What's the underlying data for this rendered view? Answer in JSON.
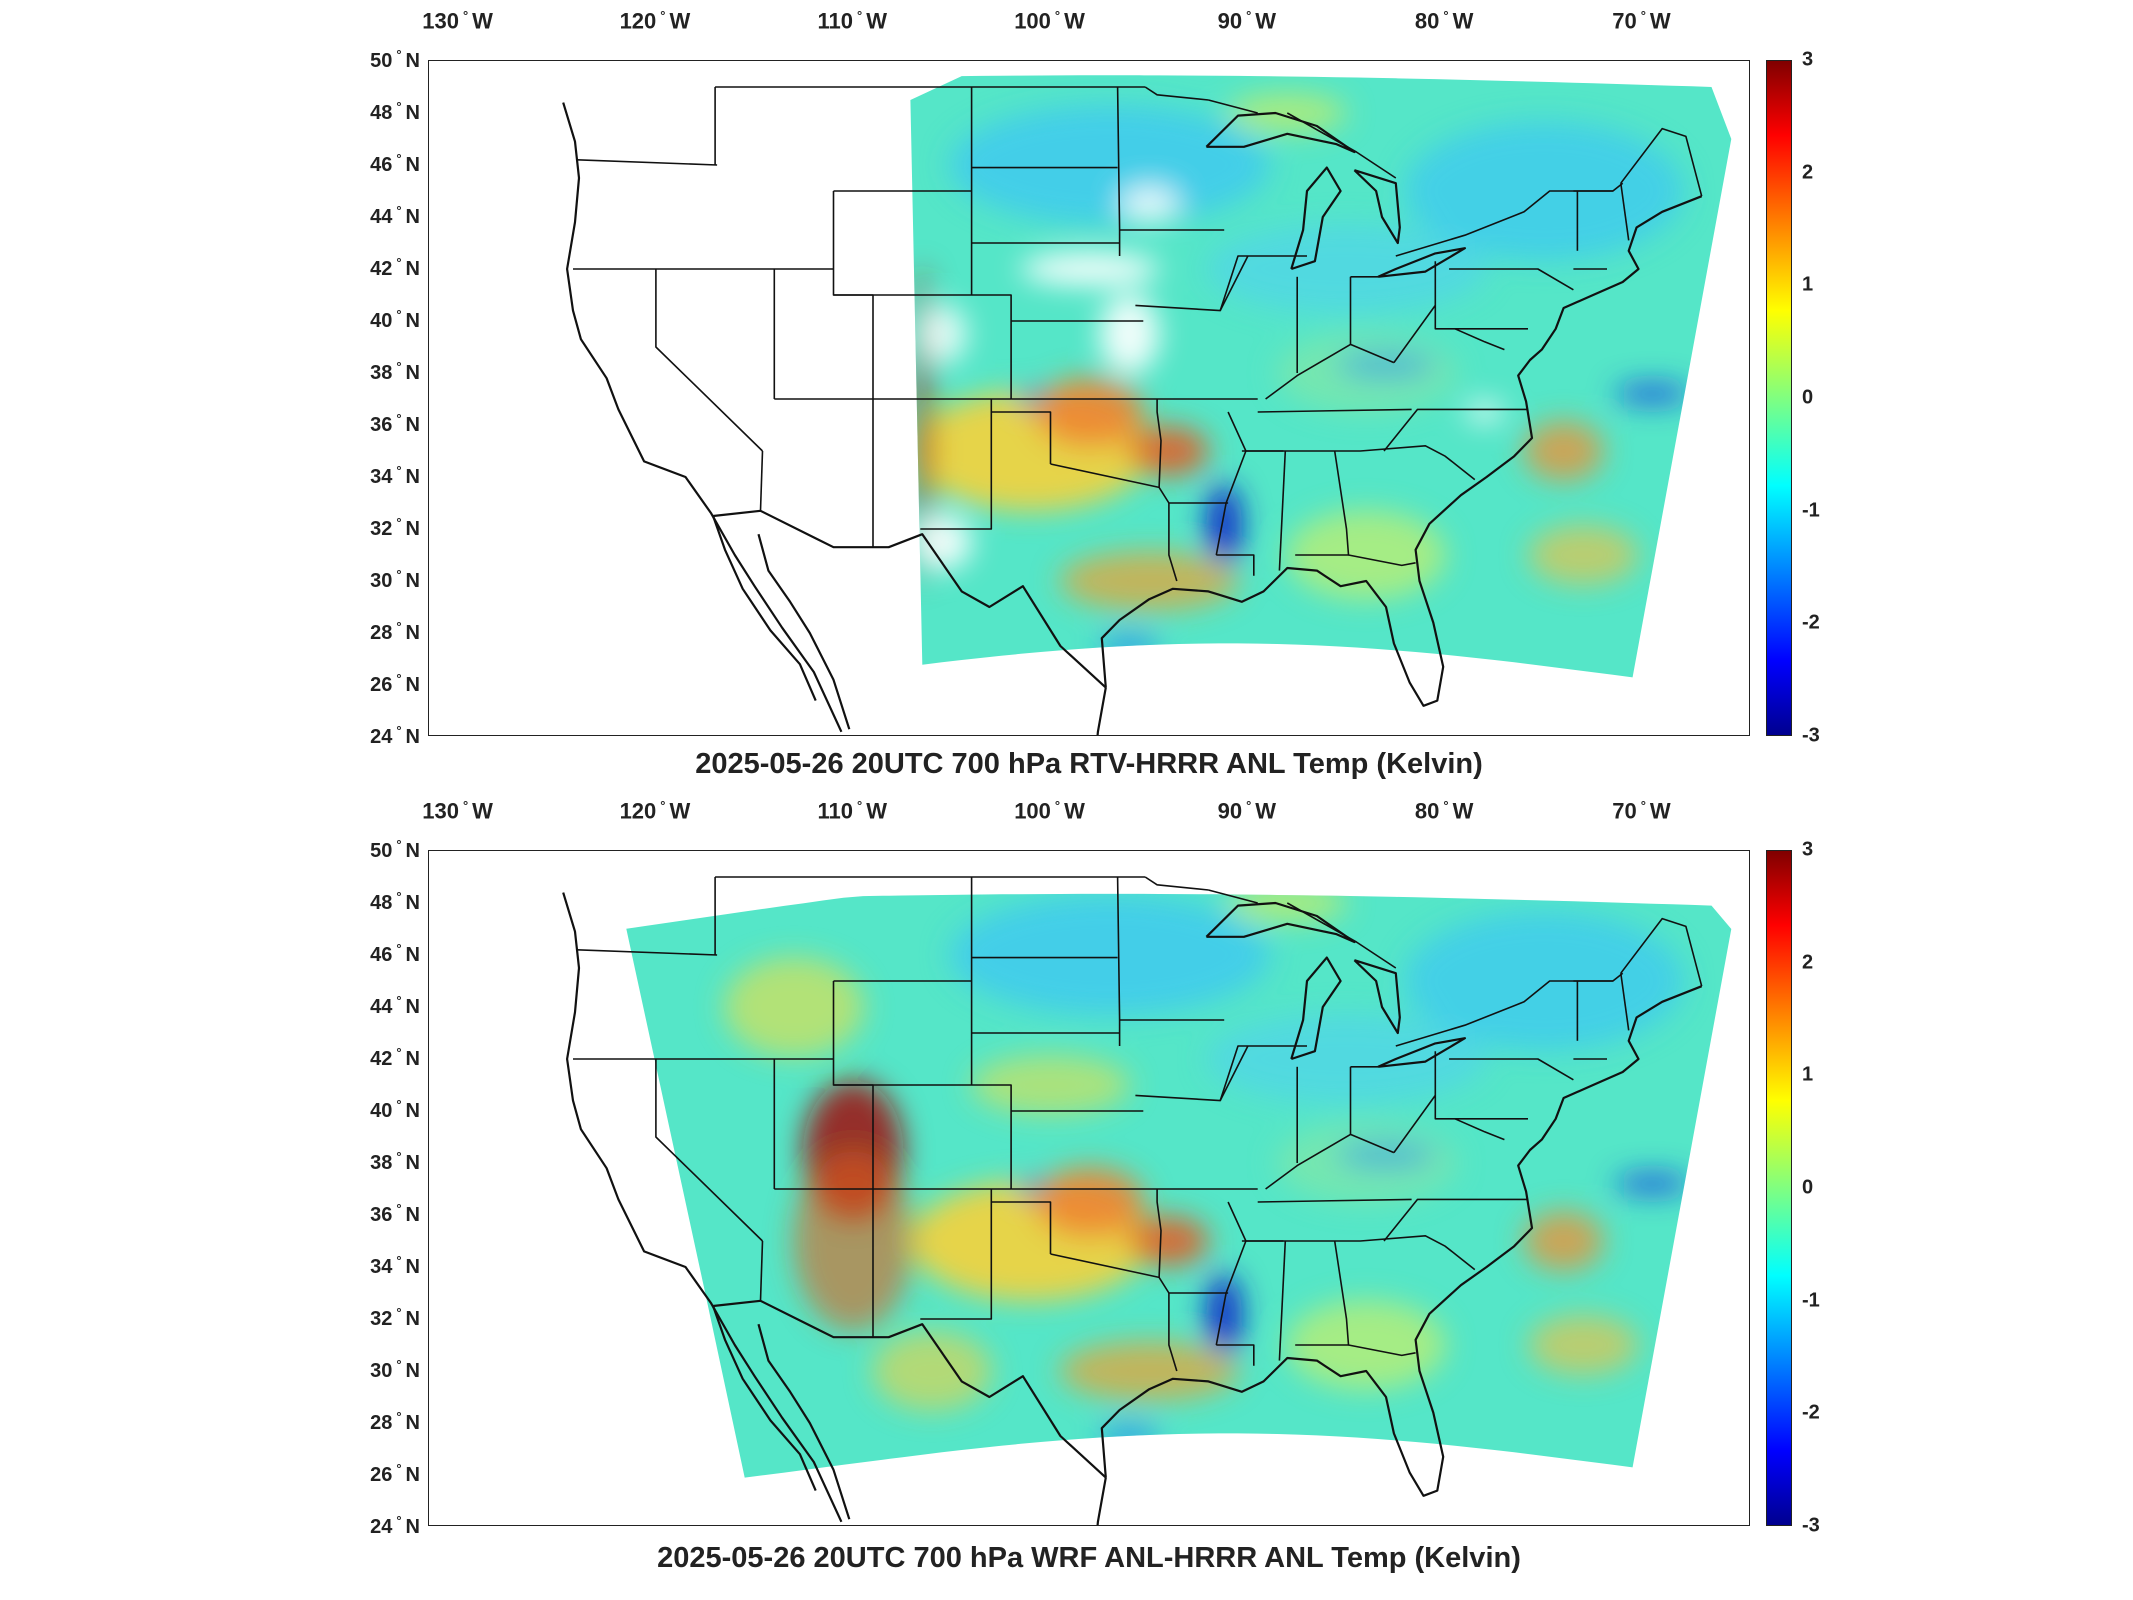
{
  "panels": [
    {
      "title": "2025-05-26 20UTC 700 hPa RTV-HRRR ANL Temp (Kelvin)",
      "data_region": "east"
    },
    {
      "title": "2025-05-26 20UTC 700 hPa WRF ANL-HRRR ANL Temp (Kelvin)",
      "data_region": "full"
    }
  ],
  "axes": {
    "lon_ticks": [
      {
        "value": -130,
        "label": "130",
        "hemi": "W"
      },
      {
        "value": -120,
        "label": "120",
        "hemi": "W"
      },
      {
        "value": -110,
        "label": "110",
        "hemi": "W"
      },
      {
        "value": -100,
        "label": "100",
        "hemi": "W"
      },
      {
        "value": -90,
        "label": "90",
        "hemi": "W"
      },
      {
        "value": -80,
        "label": "80",
        "hemi": "W"
      },
      {
        "value": -70,
        "label": "70",
        "hemi": "W"
      }
    ],
    "lat_ticks": [
      {
        "value": 50,
        "label": "50",
        "hemi": "N"
      },
      {
        "value": 48,
        "label": "48",
        "hemi": "N"
      },
      {
        "value": 46,
        "label": "46",
        "hemi": "N"
      },
      {
        "value": 44,
        "label": "44",
        "hemi": "N"
      },
      {
        "value": 42,
        "label": "42",
        "hemi": "N"
      },
      {
        "value": 40,
        "label": "40",
        "hemi": "N"
      },
      {
        "value": 38,
        "label": "38",
        "hemi": "N"
      },
      {
        "value": 36,
        "label": "36",
        "hemi": "N"
      },
      {
        "value": 34,
        "label": "34",
        "hemi": "N"
      },
      {
        "value": 32,
        "label": "32",
        "hemi": "N"
      },
      {
        "value": 30,
        "label": "30",
        "hemi": "N"
      },
      {
        "value": 28,
        "label": "28",
        "hemi": "N"
      },
      {
        "value": 26,
        "label": "26",
        "hemi": "N"
      },
      {
        "value": 24,
        "label": "24",
        "hemi": "N"
      }
    ]
  },
  "colorbar": {
    "min": -3,
    "max": 3,
    "ticks": [
      "3",
      "2",
      "1",
      "0",
      "-1",
      "-2",
      "-3"
    ],
    "colormap": "jet"
  },
  "colors": {
    "frame": "#222222",
    "outline": "#111111",
    "field_base": "#55e6c8"
  }
}
